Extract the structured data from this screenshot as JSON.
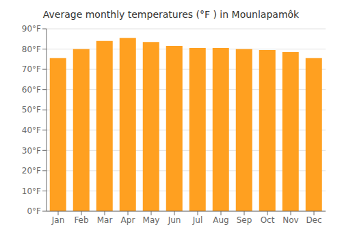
{
  "chart_data": {
    "type": "bar",
    "title": "Average monthly temperatures (°F ) in Mounlapamôk",
    "categories": [
      "Jan",
      "Feb",
      "Mar",
      "Apr",
      "May",
      "Jun",
      "Jul",
      "Aug",
      "Sep",
      "Oct",
      "Nov",
      "Dec"
    ],
    "values": [
      75.5,
      80.0,
      84.0,
      85.5,
      83.5,
      81.5,
      80.5,
      80.5,
      80.0,
      79.5,
      78.5,
      75.5
    ],
    "color": "#FFA020",
    "ylim": [
      0,
      90
    ],
    "yticks": [
      {
        "value": 0,
        "label": "0°F"
      },
      {
        "value": 10,
        "label": "10°F"
      },
      {
        "value": 20,
        "label": "20°F"
      },
      {
        "value": 30,
        "label": "30°F"
      },
      {
        "value": 40,
        "label": "40°F"
      },
      {
        "value": 50,
        "label": "50°F"
      },
      {
        "value": 60,
        "label": "60°F"
      },
      {
        "value": 70,
        "label": "70°F"
      },
      {
        "value": 80,
        "label": "80°F"
      },
      {
        "value": 90,
        "label": "90°F"
      }
    ],
    "grid": true
  }
}
